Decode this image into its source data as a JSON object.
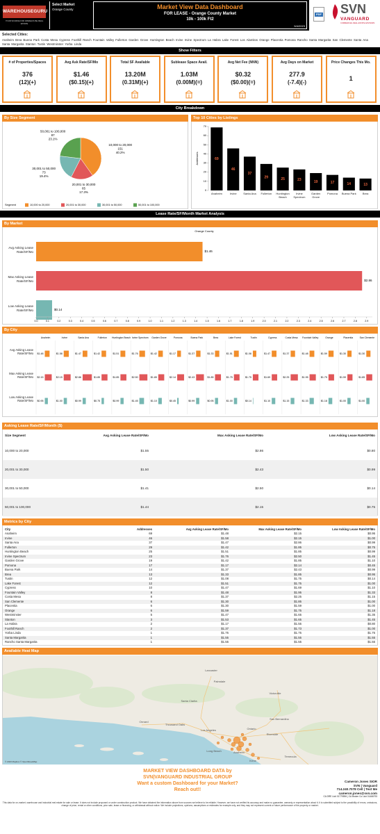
{
  "header": {
    "logo": "WAREHOUSEGURU",
    "logo_tagline": "YOUR SOURCE FOR WAREHOUSE REAL ESTATE",
    "market_label": "Select Market",
    "market": "Orange County",
    "title": "Market View Data Dashboard",
    "subtitle": "FOR LEASE - Orange County Market",
    "size_range": "10k - 100k Ft2",
    "date": "5/4/2023",
    "pdf_label": "PDF",
    "brand": "SVN",
    "brand_sub": "VANGUARD",
    "brand_tagline": "COMMERCIAL REAL ESTATE ADVISORS"
  },
  "filters": {
    "selected_label": "Selected Cities:",
    "cities": "Anaheim  Brea  Buena Park  Costa Mesa  Cypress  Foothill Ranch  Fountain Valley  Fullerton  Garden Grove  Huntington Beach  Irvine  Irvine Spectrum  La Habra  Lake Forest  Los Alamitos  Orange  Placentia  Pomona  Rancho Santa Margarita  San Clemente  Santa Ana  Santa Margarita  Stanton  Tustin  Westminster  Yorba Linda",
    "show_filters": "Show Filters"
  },
  "kpis": [
    {
      "title": "# of Properties/Spaces",
      "value": "376",
      "change": "(12)(+)"
    },
    {
      "title": "Avg Ask Rate/SF/Mo",
      "value": "$1.46",
      "change": "($0.15)(+)"
    },
    {
      "title": "Total SF Available",
      "value": "13.20M",
      "change": "(0.31M)(+)"
    },
    {
      "title": "Sublease Space Avail.",
      "value": "1.03M",
      "change": "(0.00M)(=)"
    },
    {
      "title": "Avg Net Fee (NNN)",
      "value": "$0.32",
      "change": "($0.00)(=)"
    },
    {
      "title": "Avg Days on Market",
      "value": "277.9",
      "change": "(-7.4)(-)"
    },
    {
      "title": "Price Changes This Mo.",
      "value": "1"
    }
  ],
  "section_titles": {
    "city_breakdown": "City Breakdown",
    "lease_analysis": "Lease Rate/SF/Month Market Analysis"
  },
  "chart_data": [
    {
      "type": "pie",
      "title": "By Size Segment",
      "categories": [
        "10,000 to 20,000",
        "20,001 to 30,000",
        "30,001 to 50,000",
        "50,001 to 100,000"
      ],
      "values": [
        151,
        65,
        73,
        87
      ],
      "percent_labels": [
        "40.2%",
        "17.3%",
        "19.4%",
        "23.1%"
      ],
      "colors": [
        "#f28e2b",
        "#e15759",
        "#76b7b2",
        "#59a14f"
      ],
      "legend_title": "Segment",
      "legend": "bottom"
    },
    {
      "type": "bar",
      "title": "Top 10 Cities by Listings",
      "categories": [
        "Anaheim",
        "Irvine",
        "Santa Ana",
        "Fullerton",
        "Huntington Beach",
        "Irvine Spectrum",
        "Garden Grove",
        "Pomona",
        "Buena Park",
        "Brea"
      ],
      "values": [
        69,
        46,
        37,
        29,
        25,
        23,
        19,
        17,
        14,
        13
      ],
      "color": "#000000",
      "label_color": "#e8643c",
      "y_label": "Addresses",
      "ylim": [
        0,
        70
      ],
      "yticks": [
        0,
        10,
        20,
        30,
        40,
        50,
        60,
        70
      ]
    },
    {
      "type": "hbar",
      "title": "By Market",
      "column_label": "Orange County",
      "categories": [
        "Avg Asking Lease Rate/SF/Mo",
        "Max Asking Lease Rate/SF/Mo",
        "Low Asking Lease Rate/SF/Mo"
      ],
      "values": [
        1.46,
        2.86,
        0.14
      ],
      "value_labels": [
        "$1.46",
        "$2.86",
        "$0.14"
      ],
      "colors": [
        "#f28e2b",
        "#e15759",
        "#76b7b2"
      ],
      "xlim": [
        0,
        2.95
      ],
      "xticks": [
        {
          "value": 0,
          "label": "0.0"
        },
        0.1,
        0.2,
        0.3,
        0.4,
        0.5,
        0.6,
        0.7,
        0.8,
        0.9,
        {
          "value": 1,
          "label": "1.0"
        },
        1.1,
        1.2,
        1.3,
        1.4,
        1.5,
        1.6,
        1.7,
        1.8,
        1.9,
        {
          "value": 2,
          "label": "2.0"
        },
        2.1,
        2.2,
        2.3,
        2.4,
        2.5,
        2.6,
        2.7,
        2.8,
        2.9
      ]
    },
    {
      "type": "small-multiples",
      "title": "By City",
      "categories": [
        "Anaheim",
        "Irvine",
        "Santa Ana",
        "Fullerton",
        "Huntington Beach",
        "Irvine Spectrum",
        "Garden Grove",
        "Pomona",
        "Buena Park",
        "Brea",
        "Lake Forest",
        "Tustin",
        "Cypress",
        "Costa Mesa",
        "Fountain Valley",
        "Orange",
        "Placentia",
        "San Clemente"
      ],
      "series": [
        {
          "name": "Avg Asking Lease Rate/SF/Mo",
          "color": "#f28e2b",
          "values": [
            1.48,
            1.58,
            1.47,
            1.42,
            1.51,
            1.76,
            1.42,
            1.17,
            1.37,
            1.33,
            1.51,
            1.08,
            1.47,
            1.37,
            1.48,
            1.59,
            1.3,
            1.3
          ],
          "value_labels": [
            "$1.48",
            "$1.58",
            "$1.47",
            "$1.42",
            "$1.51",
            "$1.76",
            "$1.42",
            "$1.17",
            "$1.37",
            "$1.33",
            "$1.51",
            "$1.08",
            "$1.47",
            "$1.37",
            "$1.48",
            "$1.59",
            "$1.30",
            "$1.30"
          ]
        },
        {
          "name": "Max Asking Lease Rate/SF/Mo",
          "color": "#e15759",
          "values": [
            2.15,
            2.15,
            2.86,
            1.85,
            1.85,
            2.5,
            1.85,
            2.14,
            2.43,
            1.85,
            1.75,
            1.75,
            1.69,
            2.25,
            1.95,
            1.75,
            1.59,
            1.85
          ],
          "value_labels": [
            "$2.15",
            "$2.15",
            "$2.86",
            "$1.85",
            "$1.85",
            "$2.50",
            "$1.85",
            "$2.14",
            "$2.43",
            "$1.85",
            "$1.75",
            "$1.75",
            "$1.69",
            "$2.25",
            "$1.95",
            "$1.75",
            "$1.59",
            "$1.85"
          ]
        },
        {
          "name": "Low Asking Lease Rate/SF/Mo",
          "color": "#76b7b2",
          "values": [
            0.95,
            1,
            0.99,
            0.75,
            0.99,
            1.45,
            1.1,
            0.45,
            0.99,
            0.95,
            1,
            0.14,
            1.1,
            1.15,
            1.33,
            1.18,
            1,
            1
          ],
          "value_labels": [
            "$0.95",
            "$1.00",
            "$0.99",
            "$0.75",
            "$0.99",
            "$1.45",
            "$1.10",
            "$0.45",
            "$0.99",
            "$0.95",
            "$1.00",
            "$0.14",
            "$1.10",
            "$1.15",
            "$1.33",
            "$1.18",
            "$1.00",
            "$1.00"
          ]
        }
      ]
    }
  ],
  "tables": {
    "segment": {
      "title": "Asking Lease Rate/SF/Month ($)",
      "columns": [
        "Size Segment",
        "Avg Asking Lease Rate/SF/Mo",
        "Max Asking Lease Rate/SF/Mo",
        "Low Asking Lease Rate/SF/Mo"
      ],
      "rows": [
        [
          "10,000 to 20,000",
          "$1.55",
          "$2.86",
          "$0.80"
        ],
        [
          "20,001 to 30,000",
          "$1.50",
          "$2.43",
          "$0.99"
        ],
        [
          "30,001 to 50,000",
          "$1.41",
          "$2.50",
          "$0.14"
        ],
        [
          "50,001 to 100,000",
          "$1.44",
          "$2.15",
          "$0.75"
        ]
      ]
    },
    "metrics": {
      "title": "Metrics by City",
      "columns": [
        "City",
        "Addresses",
        "Avg Asking Lease Rate/SF/Mo",
        "Max Asking Lease Rate/SF/Mo",
        "Low Asking Lease Rate/SF/Mo"
      ],
      "rows": [
        [
          "Anaheim",
          69,
          "$1.48",
          "$2.15",
          "$0.95"
        ],
        [
          "Irvine",
          46,
          "$1.58",
          "$2.15",
          "$1.00"
        ],
        [
          "Santa Ana",
          37,
          "$1.47",
          "$2.86",
          "$0.99"
        ],
        [
          "Fullerton",
          29,
          "$1.42",
          "$1.85",
          "$0.75"
        ],
        [
          "Huntington Beach",
          25,
          "$1.51",
          "$1.85",
          "$0.99"
        ],
        [
          "Irvine Spectrum",
          23,
          "$1.76",
          "$2.50",
          "$1.45"
        ],
        [
          "Garden Grove",
          19,
          "$1.42",
          "$1.85",
          "$1.10"
        ],
        [
          "Pomona",
          17,
          "$1.17",
          "$2.14",
          "$0.45"
        ],
        [
          "Buena Park",
          14,
          "$1.37",
          "$2.43",
          "$0.99"
        ],
        [
          "Brea",
          13,
          "$1.33",
          "$1.85",
          "$0.95"
        ],
        [
          "Tustin",
          12,
          "$1.08",
          "$1.75",
          "$0.14"
        ],
        [
          "Lake Forest",
          12,
          "$1.51",
          "$1.75",
          "$1.00"
        ],
        [
          "Cypress",
          10,
          "$1.47",
          "$1.69",
          "$1.10"
        ],
        [
          "Fountain Valley",
          8,
          "$1.48",
          "$1.95",
          "$1.33"
        ],
        [
          "Costa Mesa",
          8,
          "$1.37",
          "$2.25",
          "$1.15"
        ],
        [
          "San Clemente",
          6,
          "$1.30",
          "$1.85",
          "$1.00"
        ],
        [
          "Placentia",
          6,
          "$1.30",
          "$1.59",
          "$1.00"
        ],
        [
          "Orange",
          6,
          "$1.59",
          "$1.75",
          "$1.18"
        ],
        [
          "Westminster",
          5,
          "$1.47",
          "$1.65",
          "$1.35"
        ],
        [
          "Stanton",
          3,
          "$1.53",
          "$1.65",
          "$1.45"
        ],
        [
          "La Habra",
          2,
          "$1.17",
          "$1.55",
          "$0.80"
        ],
        [
          "Foothill Ranch",
          2,
          "$1.37",
          "$1.73",
          "$1.00"
        ],
        [
          "Yorba Linda",
          1,
          "$1.75",
          "$1.75",
          "$1.75"
        ],
        [
          "Santa Margarita",
          1,
          "$1.55",
          "$1.55",
          "$1.55"
        ],
        [
          "Rancho Santa Margarita",
          1,
          "$1.55",
          "$1.55",
          "$1.55"
        ]
      ]
    }
  },
  "map": {
    "title": "Available Heat Map",
    "labels": [
      "Lancaster",
      "Palmdale",
      "Victorville",
      "Santa Clarita",
      "Oxnard",
      "Thousand Oaks",
      "Los Angeles",
      "San Bernardino",
      "Ontario",
      "Riverside",
      "Long Beach",
      "Anaheim",
      "Irvine",
      "Temecula"
    ],
    "attribution": "© 2023 Mapbox © OpenStreetMap"
  },
  "footer": {
    "lines": [
      "MARKET VIEW DASHBOARD DATA by",
      "SVN|VANGUARD INDUSTRIAL GROUP",
      "Want a custom Dashboard for your Market?",
      "Reach out!!"
    ],
    "contact": [
      "Cameron Jones SIOR",
      "SVN | Vanguard",
      "714.240.7078 Cell | Text Me",
      "cameron.jones@svn.com",
      "CA DRE Lic# 01779596 | CA Broker Co Lic# 01466793"
    ],
    "disclaimer": "This data for on-market, warehouse and industrial real estate for sale or lease. It does not include proposed or under construction product. We have obtained the information above from sources we believe to be reliable. However, we have not verified its accuracy and make no guarantee, warranty or representation about it. It is submitted subject to the possibility of errors, omissions, change of price, rental or other conditions, prior sale, lease or financing, or withdrawal without notice. We include projections, opinions, assumptions or estimates for example only, and they may not represent current or future performance of the property or market."
  }
}
